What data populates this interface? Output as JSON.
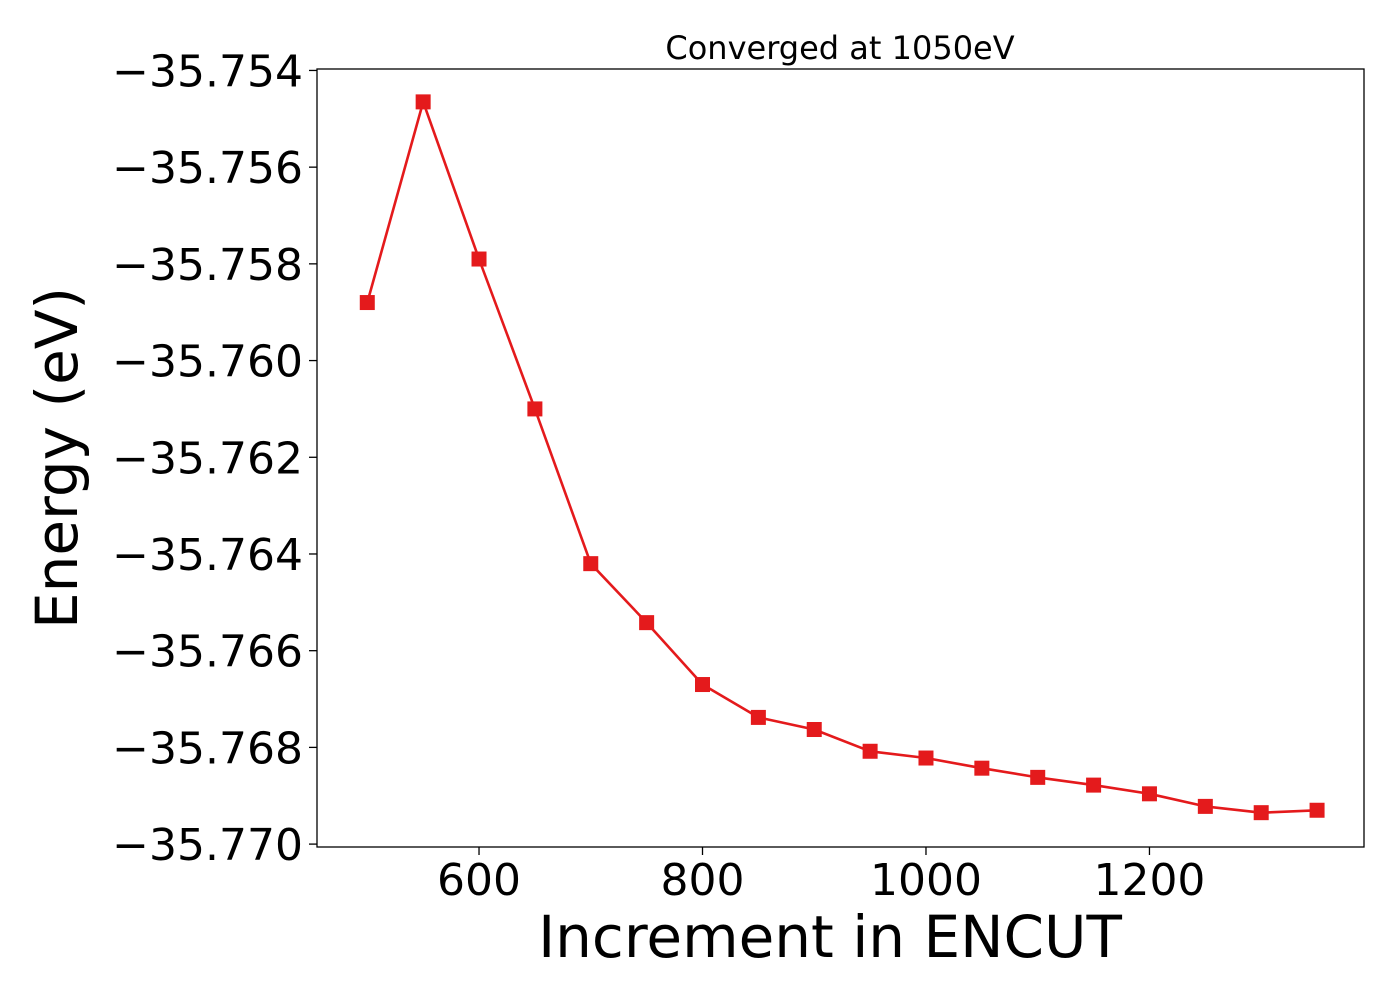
{
  "chart_data": {
    "type": "line",
    "title": "Converged at 1050eV",
    "xlabel": "Increment in ENCUT",
    "ylabel": "Energy (eV)",
    "x": [
      500,
      550,
      600,
      650,
      700,
      750,
      800,
      850,
      900,
      950,
      1000,
      1050,
      1100,
      1150,
      1200,
      1250,
      1300,
      1350
    ],
    "series": [
      {
        "color": "#e41a1c",
        "marker": "square",
        "values": [
          -35.7588,
          -35.75465,
          -35.7579,
          -35.761,
          -35.7642,
          -35.76542,
          -35.7667,
          -35.76738,
          -35.76763,
          -35.76808,
          -35.76822,
          -35.76843,
          -35.76862,
          -35.76878,
          -35.76896,
          -35.76922,
          -35.76935,
          -35.7693
        ]
      }
    ],
    "xlim": [
      455,
      1392
    ],
    "ylim": [
      -35.77006,
      -35.75397
    ],
    "xticks": [
      600,
      800,
      1000,
      1200
    ],
    "xtick_labels": [
      "600",
      "800",
      "1000",
      "1200"
    ],
    "yticks": [
      -35.77,
      -35.768,
      -35.766,
      -35.764,
      -35.762,
      -35.76,
      -35.758,
      -35.756,
      -35.754
    ],
    "ytick_labels": [
      "−35.770",
      "−35.768",
      "−35.766",
      "−35.764",
      "−35.762",
      "−35.760",
      "−35.758",
      "−35.756",
      "−35.754"
    ],
    "grid": false
  }
}
